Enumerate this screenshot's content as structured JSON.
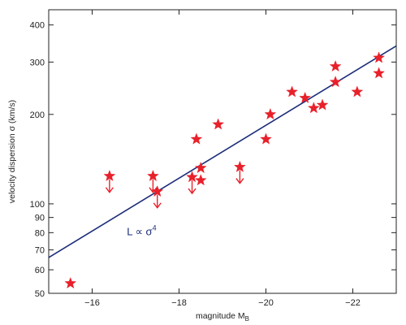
{
  "chart_data": {
    "type": "scatter",
    "xlabel": "magnitude  M",
    "xlabel_sub": "B",
    "ylabel": "velocity dispersion  σ (km/s)",
    "x_reversed": true,
    "xlim": [
      -15,
      -23
    ],
    "ylim": [
      50,
      450
    ],
    "y_scale": "log",
    "grid": false,
    "x_ticks": [
      -16,
      -18,
      -20,
      -22
    ],
    "x_tick_labels": [
      "−16",
      "−18",
      "−20",
      "−22"
    ],
    "y_ticks": [
      50,
      60,
      70,
      80,
      90,
      100,
      200,
      300,
      400
    ],
    "y_tick_labels": [
      "50",
      "60",
      "70",
      "80",
      "90",
      "100",
      "200",
      "300",
      "400"
    ],
    "colors": {
      "points": "#e8202a",
      "fit": "#1c2d78",
      "axis": "#222222"
    },
    "marker": "star",
    "series": [
      {
        "points": [
          {
            "x": -15.5,
            "y": 54
          },
          {
            "x": -16.4,
            "y": 124,
            "upper_limit": true
          },
          {
            "x": -17.4,
            "y": 124,
            "upper_limit": true
          },
          {
            "x": -17.5,
            "y": 110,
            "upper_limit": true
          },
          {
            "x": -18.3,
            "y": 123,
            "upper_limit": true
          },
          {
            "x": -18.4,
            "y": 165
          },
          {
            "x": -18.5,
            "y": 120
          },
          {
            "x": -18.5,
            "y": 132
          },
          {
            "x": -18.9,
            "y": 185
          },
          {
            "x": -19.4,
            "y": 133,
            "upper_limit": true
          },
          {
            "x": -20.0,
            "y": 165
          },
          {
            "x": -20.1,
            "y": 200
          },
          {
            "x": -20.6,
            "y": 238
          },
          {
            "x": -20.9,
            "y": 227
          },
          {
            "x": -21.1,
            "y": 210
          },
          {
            "x": -21.3,
            "y": 215
          },
          {
            "x": -21.6,
            "y": 257
          },
          {
            "x": -21.6,
            "y": 290
          },
          {
            "x": -22.1,
            "y": 238
          },
          {
            "x": -22.6,
            "y": 310
          },
          {
            "x": -22.6,
            "y": 275
          }
        ]
      }
    ],
    "fit_line": {
      "x": [
        -15,
        -23
      ],
      "y": [
        66,
        340
      ]
    },
    "annotation": {
      "text": "L ∝ σ",
      "superscript": "4",
      "x": -16.8,
      "y": 81
    }
  }
}
